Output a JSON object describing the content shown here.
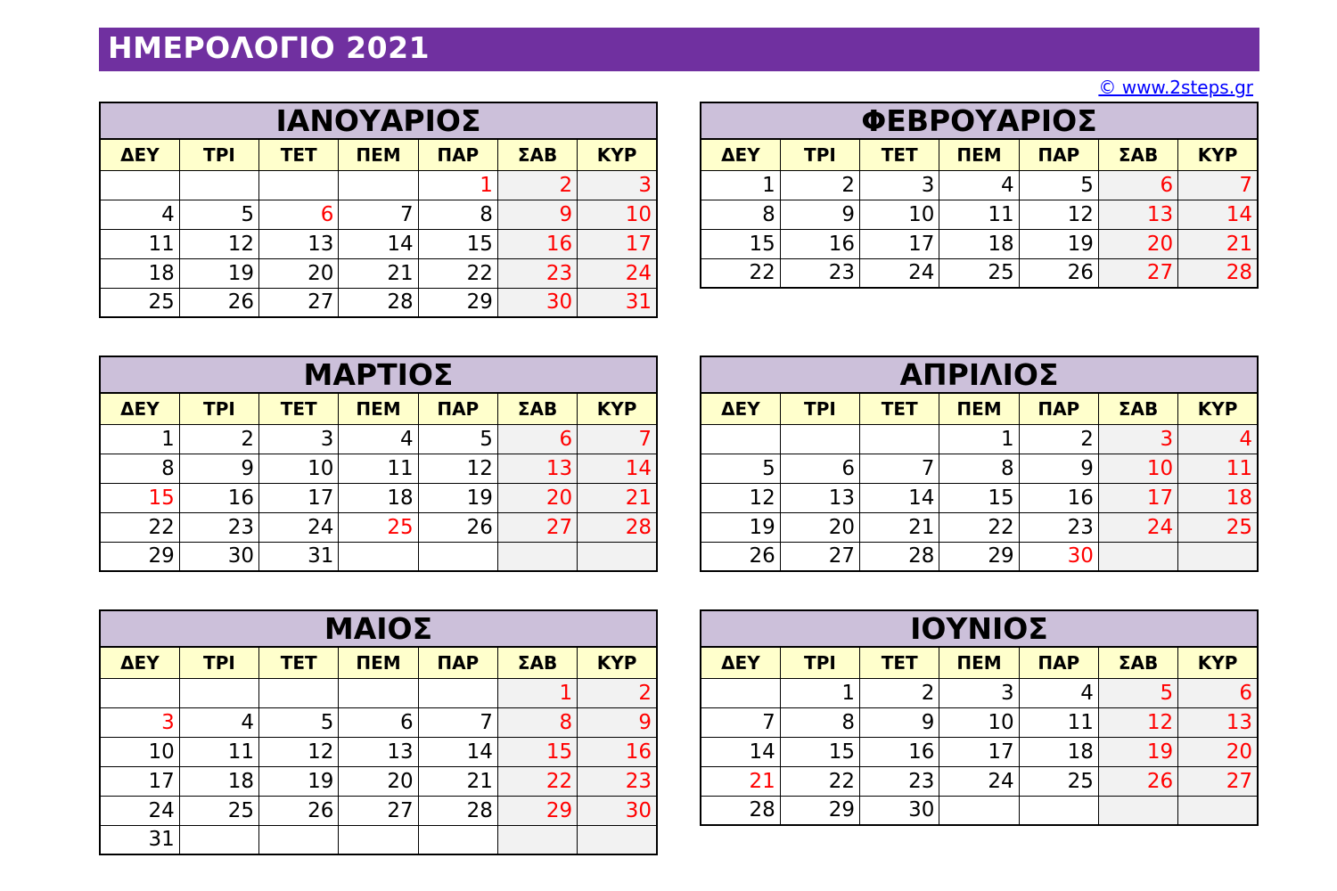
{
  "title": "ΗΜΕΡΟΛΟΓΙΟ 2021",
  "copyright": "© www.2steps.gr",
  "colors": {
    "title_bg": "#7030a0",
    "month_header_bg": "#ccc0da",
    "day_header_bg": "#ffffcc",
    "weekend_bg": "#f2f2f2",
    "holiday_text": "#ff0000",
    "link": "#0000ff"
  },
  "weekdays": [
    "ΔΕΥ",
    "ΤΡΙ",
    "ΤΕΤ",
    "ΠΕΜ",
    "ΠΑΡ",
    "ΣΑΒ",
    "ΚΥΡ"
  ],
  "months": [
    {
      "name": "ΙΑΝΟΥΑΡΙΟΣ",
      "weeks": [
        [
          "",
          "",
          "",
          "",
          "1",
          "2",
          "3"
        ],
        [
          "4",
          "5",
          "6",
          "7",
          "8",
          "9",
          "10"
        ],
        [
          "11",
          "12",
          "13",
          "14",
          "15",
          "16",
          "17"
        ],
        [
          "18",
          "19",
          "20",
          "21",
          "22",
          "23",
          "24"
        ],
        [
          "25",
          "26",
          "27",
          "28",
          "29",
          "30",
          "31"
        ]
      ],
      "holidays": [
        "1",
        "6"
      ]
    },
    {
      "name": "ΦΕΒΡΟΥΑΡΙΟΣ",
      "weeks": [
        [
          "1",
          "2",
          "3",
          "4",
          "5",
          "6",
          "7"
        ],
        [
          "8",
          "9",
          "10",
          "11",
          "12",
          "13",
          "14"
        ],
        [
          "15",
          "16",
          "17",
          "18",
          "19",
          "20",
          "21"
        ],
        [
          "22",
          "23",
          "24",
          "25",
          "26",
          "27",
          "28"
        ]
      ],
      "holidays": []
    },
    {
      "name": "ΜΑΡΤΙΟΣ",
      "weeks": [
        [
          "1",
          "2",
          "3",
          "4",
          "5",
          "6",
          "7"
        ],
        [
          "8",
          "9",
          "10",
          "11",
          "12",
          "13",
          "14"
        ],
        [
          "15",
          "16",
          "17",
          "18",
          "19",
          "20",
          "21"
        ],
        [
          "22",
          "23",
          "24",
          "25",
          "26",
          "27",
          "28"
        ],
        [
          "29",
          "30",
          "31",
          "",
          "",
          "",
          ""
        ]
      ],
      "holidays": [
        "15",
        "25"
      ]
    },
    {
      "name": "ΑΠΡΙΛΙΟΣ",
      "weeks": [
        [
          "",
          "",
          "",
          "1",
          "2",
          "3",
          "4"
        ],
        [
          "5",
          "6",
          "7",
          "8",
          "9",
          "10",
          "11"
        ],
        [
          "12",
          "13",
          "14",
          "15",
          "16",
          "17",
          "18"
        ],
        [
          "19",
          "20",
          "21",
          "22",
          "23",
          "24",
          "25"
        ],
        [
          "26",
          "27",
          "28",
          "29",
          "30",
          "",
          ""
        ]
      ],
      "holidays": [
        "30"
      ]
    },
    {
      "name": "ΜΑΙΟΣ",
      "weeks": [
        [
          "",
          "",
          "",
          "",
          "",
          "1",
          "2"
        ],
        [
          "3",
          "4",
          "5",
          "6",
          "7",
          "8",
          "9"
        ],
        [
          "10",
          "11",
          "12",
          "13",
          "14",
          "15",
          "16"
        ],
        [
          "17",
          "18",
          "19",
          "20",
          "21",
          "22",
          "23"
        ],
        [
          "24",
          "25",
          "26",
          "27",
          "28",
          "29",
          "30"
        ],
        [
          "31",
          "",
          "",
          "",
          "",
          "",
          ""
        ]
      ],
      "holidays": [
        "3"
      ]
    },
    {
      "name": "ΙΟΥΝΙΟΣ",
      "weeks": [
        [
          "",
          "1",
          "2",
          "3",
          "4",
          "5",
          "6"
        ],
        [
          "7",
          "8",
          "9",
          "10",
          "11",
          "12",
          "13"
        ],
        [
          "14",
          "15",
          "16",
          "17",
          "18",
          "19",
          "20"
        ],
        [
          "21",
          "22",
          "23",
          "24",
          "25",
          "26",
          "27"
        ],
        [
          "28",
          "29",
          "30",
          "",
          "",
          "",
          ""
        ]
      ],
      "holidays": [
        "21"
      ]
    }
  ]
}
